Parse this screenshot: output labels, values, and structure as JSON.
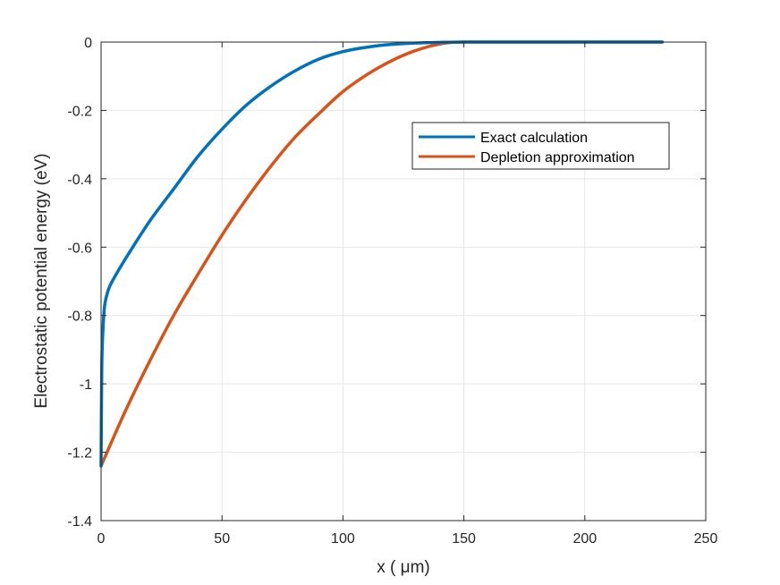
{
  "chart_data": {
    "type": "line",
    "xlabel": "x ( μm)",
    "ylabel": "Electrostatic potential energy (eV)",
    "xlim": [
      0,
      250
    ],
    "ylim": [
      -1.4,
      0
    ],
    "xticks": [
      0,
      50,
      100,
      150,
      200,
      250
    ],
    "yticks": [
      0,
      -0.2,
      -0.4,
      -0.6,
      -0.8,
      -1,
      -1.2,
      -1.4
    ],
    "xtick_labels": [
      "0",
      "50",
      "100",
      "150",
      "200",
      "250"
    ],
    "ytick_labels": [
      "0",
      "-0.2",
      "-0.4",
      "-0.6",
      "-0.8",
      "-1",
      "-1.2",
      "-1.4"
    ],
    "grid": true,
    "legend_position": "upper-right",
    "series": [
      {
        "name": "Exact calculation",
        "color": "#0072BD",
        "x": [
          0,
          0.3,
          0.8,
          1.5,
          3,
          5,
          10,
          20,
          30,
          40,
          50,
          60,
          70,
          80,
          90,
          100,
          110,
          120,
          130,
          140,
          150,
          175,
          200,
          232
        ],
        "y": [
          -1.24,
          -0.95,
          -0.84,
          -0.77,
          -0.725,
          -0.695,
          -0.635,
          -0.525,
          -0.43,
          -0.335,
          -0.255,
          -0.185,
          -0.13,
          -0.085,
          -0.05,
          -0.028,
          -0.015,
          -0.007,
          -0.003,
          -0.001,
          0,
          0,
          0,
          0
        ]
      },
      {
        "name": "Depletion approximation",
        "color": "#D95319",
        "x": [
          0,
          10,
          20,
          30,
          40,
          50,
          60,
          70,
          80,
          90,
          100,
          110,
          120,
          130,
          140,
          150,
          175,
          200,
          232
        ],
        "y": [
          -1.24,
          -1.08,
          -0.935,
          -0.8,
          -0.68,
          -0.565,
          -0.46,
          -0.365,
          -0.28,
          -0.21,
          -0.145,
          -0.095,
          -0.055,
          -0.025,
          -0.006,
          0,
          0,
          0,
          0
        ]
      }
    ]
  }
}
